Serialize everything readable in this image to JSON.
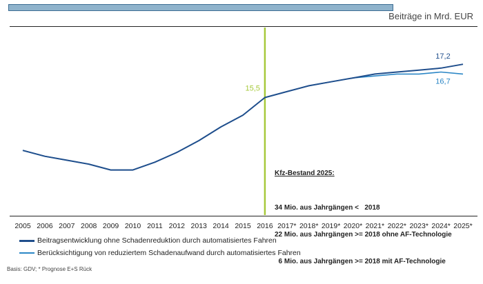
{
  "chart_data": {
    "type": "line",
    "unit_label": "Beiträge in Mrd. EUR",
    "categories": [
      "2005",
      "2006",
      "2007",
      "2008",
      "2009",
      "2010",
      "2011",
      "2012",
      "2013",
      "2014",
      "2015",
      "2016",
      "2017*",
      "2018*",
      "2019*",
      "2020*",
      "2021*",
      "2022*",
      "2023*",
      "2024*",
      "2025*"
    ],
    "series": [
      {
        "name": "Beitragsentwicklung ohne Schadenreduktion durch automatisiertes Fahren",
        "color": "#1f4e8c",
        "values": [
          12.8,
          12.5,
          12.3,
          12.1,
          11.8,
          11.8,
          12.2,
          12.7,
          13.3,
          14.0,
          14.6,
          15.5,
          15.8,
          16.1,
          16.3,
          16.5,
          16.7,
          16.8,
          16.9,
          17.0,
          17.2
        ],
        "end_label": "17,2"
      },
      {
        "name": "Berücksichtigung von reduziertem Schadenaufwand durch automatisiertes Fahren",
        "color": "#2a86c6",
        "values": [
          12.8,
          12.5,
          12.3,
          12.1,
          11.8,
          11.8,
          12.2,
          12.7,
          13.3,
          14.0,
          14.6,
          15.5,
          15.8,
          16.1,
          16.3,
          16.5,
          16.6,
          16.7,
          16.7,
          16.8,
          16.7
        ],
        "end_label": "16,7"
      }
    ],
    "marker": {
      "category": "2016",
      "value": 15.5,
      "label": "15,5",
      "color": "#a6c93a"
    },
    "ylim": [
      9.5,
      19.0
    ],
    "title": "",
    "xlabel": "",
    "ylabel": ""
  },
  "note": {
    "title": "Kfz-Bestand 2025:",
    "lines": [
      "34 Mio. aus Jahrgängen <   2018",
      "22 Mio. aus Jahrgängen >= 2018 ohne AF-Technologie",
      "  6 Mio. aus Jahrgängen >= 2018 mit AF-Technologie"
    ]
  },
  "source": "Basis: GDV; * Prognose  E+S Rück"
}
